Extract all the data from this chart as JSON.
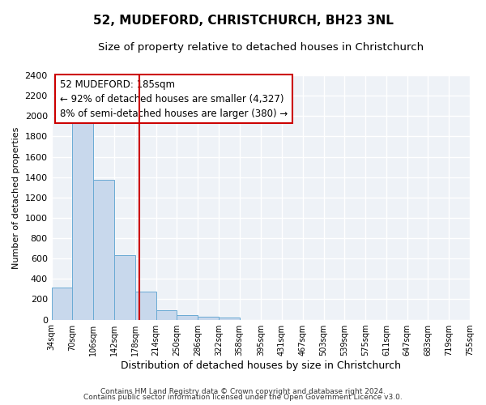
{
  "title": "52, MUDEFORD, CHRISTCHURCH, BH23 3NL",
  "subtitle": "Size of property relative to detached houses in Christchurch",
  "xlabel": "Distribution of detached houses by size in Christchurch",
  "ylabel": "Number of detached properties",
  "bar_edges": [
    34,
    70,
    106,
    142,
    178,
    214,
    250,
    286,
    322,
    358,
    395,
    431,
    467,
    503,
    539,
    575,
    611,
    647,
    683,
    719,
    755
  ],
  "bar_heights": [
    315,
    1950,
    1375,
    630,
    275,
    95,
    45,
    25,
    20,
    0,
    0,
    0,
    0,
    0,
    0,
    0,
    0,
    0,
    0,
    0
  ],
  "bar_color": "#c8d8ec",
  "bar_edgecolor": "#6aaad4",
  "vline_x": 185,
  "vline_color": "#cc0000",
  "annotation_line1": "52 MUDEFORD: 185sqm",
  "annotation_line2": "← 92% of detached houses are smaller (4,327)",
  "annotation_line3": "8% of semi-detached houses are larger (380) →",
  "ylim": [
    0,
    2400
  ],
  "yticks": [
    0,
    200,
    400,
    600,
    800,
    1000,
    1200,
    1400,
    1600,
    1800,
    2000,
    2200,
    2400
  ],
  "tick_labels": [
    "34sqm",
    "70sqm",
    "106sqm",
    "142sqm",
    "178sqm",
    "214sqm",
    "250sqm",
    "286sqm",
    "322sqm",
    "358sqm",
    "395sqm",
    "431sqm",
    "467sqm",
    "503sqm",
    "539sqm",
    "575sqm",
    "611sqm",
    "647sqm",
    "683sqm",
    "719sqm",
    "755sqm"
  ],
  "footer_line1": "Contains HM Land Registry data © Crown copyright and database right 2024.",
  "footer_line2": "Contains public sector information licensed under the Open Government Licence v3.0.",
  "bg_color": "#ffffff",
  "plot_bg_color": "#eef2f7",
  "grid_color": "#ffffff",
  "title_fontsize": 11,
  "subtitle_fontsize": 9.5,
  "annotation_fontsize": 8.5,
  "ylabel_fontsize": 8,
  "xlabel_fontsize": 9
}
